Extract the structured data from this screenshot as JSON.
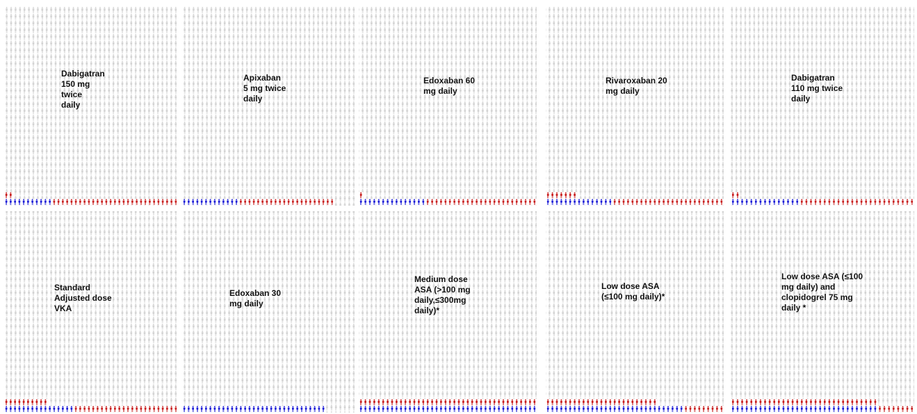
{
  "colors": {
    "blue": "#1a1ad6",
    "red": "#c81e1e",
    "gray": "#d3d3d3",
    "background": "#ffffff"
  },
  "icon": "person-icon",
  "grid": {
    "columns": 40,
    "rows": 31
  },
  "chart_data": [
    {
      "type": "icon-array",
      "label_lines": [
        "Dabigatran",
        "150 mg",
        "twice",
        "daily"
      ],
      "blue": 11,
      "red": 31
    },
    {
      "type": "icon-array",
      "label_lines": [
        "Apixaban",
        "5 mg twice",
        "daily"
      ],
      "blue": 13,
      "red": 22
    },
    {
      "type": "icon-array",
      "label_lines": [
        "Edoxaban 60",
        "mg daily"
      ],
      "blue": 15,
      "red": 26
    },
    {
      "type": "icon-array",
      "label_lines": [
        "Rivaroxaban 20",
        "mg daily"
      ],
      "blue": 15,
      "red": 32
    },
    {
      "type": "icon-array",
      "label_lines": [
        "Dabigatran",
        "110 mg twice",
        "daily"
      ],
      "blue": 15,
      "red": 27
    },
    {
      "type": "icon-array",
      "label_lines": [
        "Standard",
        "Adjusted dose",
        "VKA"
      ],
      "blue": 16,
      "red": 34
    },
    {
      "type": "icon-array",
      "label_lines": [
        "Edoxaban 30",
        "mg daily"
      ],
      "blue": 33,
      "red": 0
    },
    {
      "type": "icon-array",
      "label_lines": [
        "Medium dose",
        "ASA (>100 mg",
        "daily,≤300mg",
        "daily)*"
      ],
      "blue": 40,
      "red": 40
    },
    {
      "type": "icon-array",
      "label_lines": [
        "Low dose ASA",
        "(≤100 mg daily)*"
      ],
      "blue": 31,
      "red": 34
    },
    {
      "type": "icon-array",
      "label_lines": [
        "Low dose ASA (≤100",
        "mg daily) and",
        "clopidogrel 75 mg",
        "daily *"
      ],
      "blue": 32,
      "red": 40
    }
  ]
}
